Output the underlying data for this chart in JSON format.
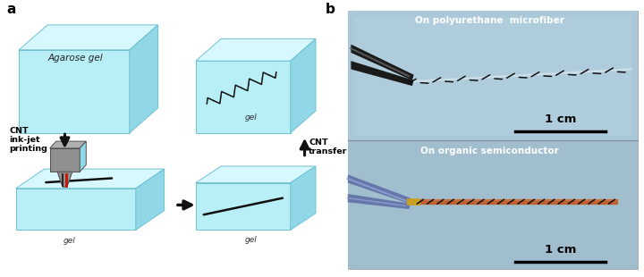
{
  "fig_width": 7.2,
  "fig_height": 3.1,
  "dpi": 100,
  "bg_color": "#ffffff",
  "label_a": "a",
  "label_b": "b",
  "label_fontsize": 11,
  "label_fontweight": "bold",
  "gel_face_color": "#b8eef5",
  "gel_top_color": "#d8f8ff",
  "gel_right_color": "#90d8e8",
  "gel_edge_color": "#70c0d0",
  "agarose_gel_text": "Agarose gel",
  "cnt_text": "CNT\nink-jet\nprinting",
  "transfer_text": "CNT\ntransfer",
  "gel_text": "gel",
  "poly_text": "On polyurethane  microfiber",
  "semi_text": "On organic semiconductor",
  "scale_text": "1 cm",
  "printer_body_color": "#909090",
  "printer_dark": "#505050",
  "printer_light": "#b0b0b0",
  "ink_red": "#cc1100",
  "arrow_color": "#111111",
  "cnt_line_color": "#111111",
  "photo_bg": "#a5c8dc",
  "photo_top_bg": "#aaccdd",
  "photo_bot_bg": "#a8c5d5",
  "scale_bar_color": "#000000",
  "divider_color": "#888899"
}
